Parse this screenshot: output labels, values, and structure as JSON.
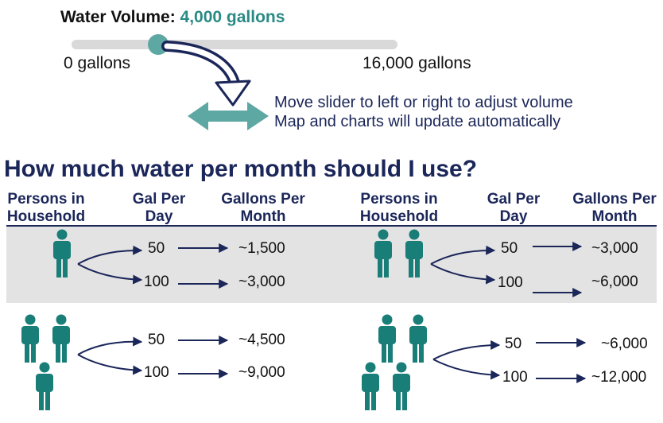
{
  "volume": {
    "label": "Water Volume:",
    "value_text": "4,000 gallons",
    "value": 4000,
    "min_label": "0 gallons",
    "max_label": "16,000 gallons",
    "min": 0,
    "max": 16000
  },
  "instructions": [
    "Move slider to left or right to adjust volume",
    "Map and charts will update automatically"
  ],
  "heading": "How much water per month should I use?",
  "columns": {
    "persons_line1": "Persons in",
    "persons_line2": "Household",
    "galday_line1": "Gal Per",
    "galday_line2": "Day",
    "galmonth_line1": "Gallons Per",
    "galmonth_line2": "Month"
  },
  "households": [
    {
      "persons": 1,
      "rows": [
        {
          "gal_per_day": "50",
          "gal_per_month": "~1,500"
        },
        {
          "gal_per_day": "100",
          "gal_per_month": "~3,000"
        }
      ]
    },
    {
      "persons": 2,
      "rows": [
        {
          "gal_per_day": "50",
          "gal_per_month": "~3,000"
        },
        {
          "gal_per_day": "100",
          "gal_per_month": "~6,000"
        }
      ]
    },
    {
      "persons": 3,
      "rows": [
        {
          "gal_per_day": "50",
          "gal_per_month": "~4,500"
        },
        {
          "gal_per_day": "100",
          "gal_per_month": "~9,000"
        }
      ]
    },
    {
      "persons": 4,
      "rows": [
        {
          "gal_per_day": "50",
          "gal_per_month": "~6,000"
        },
        {
          "gal_per_day": "100",
          "gal_per_month": "~12,000"
        }
      ]
    }
  ],
  "colors": {
    "accent": "#2a8a85",
    "navy": "#1b2659",
    "person": "#1a7e78",
    "band": "#e3e3e3"
  },
  "icons": [
    "person-icon",
    "branch-arrow-icon",
    "right-arrow-icon",
    "curved-arrow-icon",
    "double-arrow-icon"
  ]
}
